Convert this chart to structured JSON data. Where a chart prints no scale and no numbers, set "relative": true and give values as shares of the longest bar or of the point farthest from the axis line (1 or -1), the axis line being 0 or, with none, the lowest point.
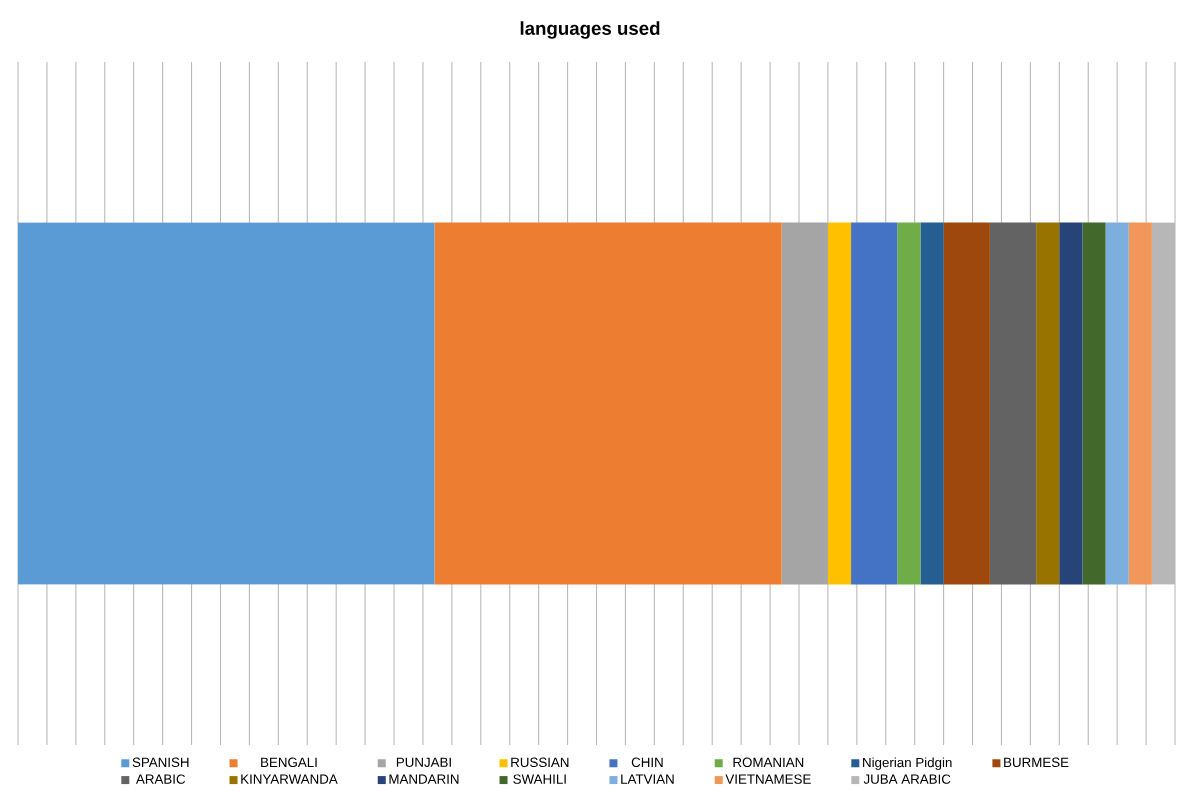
{
  "chart_data": {
    "type": "bar",
    "title": "languages used",
    "orientation": "horizontal",
    "stacked": true,
    "relative": true,
    "grid": "x",
    "legend": "bottom",
    "categories": [
      null
    ],
    "series": [
      {
        "name": "SPANISH",
        "color": "#5b9bd5",
        "values": [
          0.36
        ]
      },
      {
        "name": "BENGALI",
        "color": "#ed7d31",
        "values": [
          0.3
        ]
      },
      {
        "name": "PUNJABI",
        "color": "#a5a5a5",
        "values": [
          0.04
        ]
      },
      {
        "name": "RUSSIAN",
        "color": "#ffc000",
        "values": [
          0.02
        ]
      },
      {
        "name": "CHIN",
        "color": "#4472c4",
        "values": [
          0.04
        ]
      },
      {
        "name": "ROMANIAN",
        "color": "#70ad47",
        "values": [
          0.02
        ]
      },
      {
        "name": "Nigerian Pidgin",
        "color": "#255e91",
        "values": [
          0.02
        ]
      },
      {
        "name": "BURMESE",
        "color": "#9e480e",
        "values": [
          0.04
        ]
      },
      {
        "name": "ARABIC",
        "color": "#636363",
        "values": [
          0.04
        ]
      },
      {
        "name": "KINYARWANDA",
        "color": "#997300",
        "values": [
          0.02
        ]
      },
      {
        "name": "MANDARIN",
        "color": "#264478",
        "values": [
          0.02
        ]
      },
      {
        "name": "SWAHILI",
        "color": "#43682b",
        "values": [
          0.02
        ]
      },
      {
        "name": "LATVIAN",
        "color": "#7cafdd",
        "values": [
          0.02
        ]
      },
      {
        "name": "VIETNAMESE",
        "color": "#f1975a",
        "values": [
          0.02
        ]
      },
      {
        "name": "JUBA ARABIC",
        "color": "#b7b7b7",
        "values": [
          0.02
        ]
      }
    ]
  }
}
